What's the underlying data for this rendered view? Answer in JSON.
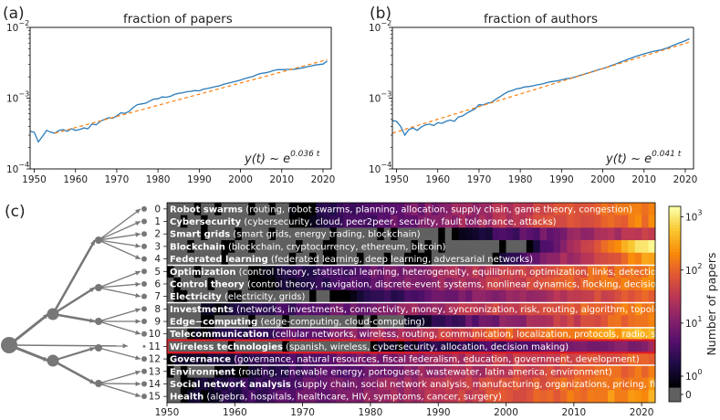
{
  "chart_data": [
    {
      "type": "line",
      "panel": "(a)",
      "title": "fraction of papers",
      "yscale": "log",
      "xlim": [
        1949,
        2022
      ],
      "ylim": [
        0.0001,
        0.01
      ],
      "x_ticks": [
        "1950",
        "1960",
        "1970",
        "1980",
        "1990",
        "2000",
        "2010",
        "2020"
      ],
      "y_ticks": [
        {
          "base": "10",
          "exp": "−4"
        },
        {
          "base": "10",
          "exp": "−3"
        },
        {
          "base": "10",
          "exp": "−2"
        }
      ],
      "fit_base": "y(t) ~ e",
      "fit_exp": "0.036 t",
      "series": [
        {
          "name": "data",
          "x": [
            1949,
            1950,
            1951,
            1952,
            1953,
            1954,
            1955,
            1956,
            1957,
            1958,
            1959,
            1960,
            1961,
            1962,
            1963,
            1964,
            1965,
            1966,
            1967,
            1968,
            1969,
            1970,
            1971,
            1972,
            1973,
            1974,
            1975,
            1976,
            1977,
            1978,
            1979,
            1980,
            1981,
            1982,
            1983,
            1984,
            1985,
            1986,
            1987,
            1988,
            1989,
            1990,
            1991,
            1992,
            1993,
            1994,
            1995,
            1996,
            1997,
            1998,
            1999,
            2000,
            2001,
            2002,
            2003,
            2004,
            2005,
            2006,
            2007,
            2008,
            2009,
            2010,
            2011,
            2012,
            2013,
            2014,
            2015,
            2016,
            2017,
            2018,
            2019,
            2020,
            2021
          ],
          "y": [
            0.00034,
            0.00033,
            0.00024,
            0.00029,
            0.00035,
            0.00033,
            0.00032,
            0.00035,
            0.00036,
            0.00034,
            0.00037,
            0.00035,
            0.00036,
            0.00038,
            0.00037,
            0.00043,
            0.00042,
            0.00047,
            0.0005,
            0.00053,
            0.00052,
            0.00056,
            0.00062,
            0.00061,
            0.00065,
            0.00074,
            0.00081,
            0.00083,
            0.00085,
            0.00091,
            0.00097,
            0.00098,
            0.00104,
            0.00103,
            0.00106,
            0.00113,
            0.00117,
            0.00119,
            0.00123,
            0.00125,
            0.00128,
            0.00127,
            0.00134,
            0.00137,
            0.00141,
            0.00146,
            0.0015,
            0.00158,
            0.00163,
            0.00168,
            0.00174,
            0.0018,
            0.00189,
            0.00196,
            0.00203,
            0.00215,
            0.00224,
            0.00228,
            0.00235,
            0.00246,
            0.00253,
            0.00253,
            0.00254,
            0.00256,
            0.00255,
            0.00262,
            0.00268,
            0.00276,
            0.00284,
            0.00293,
            0.00298,
            0.00303,
            0.00335
          ]
        },
        {
          "name": "fit",
          "x": [
            1955,
            2021
          ],
          "y": [
            0.00032,
            0.0035
          ]
        }
      ]
    },
    {
      "type": "line",
      "panel": "(b)",
      "title": "fraction of authors",
      "yscale": "log",
      "xlim": [
        1949,
        2022
      ],
      "ylim": [
        0.0001,
        0.01
      ],
      "x_ticks": [
        "1950",
        "1960",
        "1970",
        "1980",
        "1990",
        "2000",
        "2010",
        "2020"
      ],
      "y_ticks": [
        {
          "base": "10",
          "exp": "−4"
        },
        {
          "base": "10",
          "exp": "−3"
        },
        {
          "base": "10",
          "exp": "−2"
        }
      ],
      "fit_base": "y(t) ~ e",
      "fit_exp": "0.041 t",
      "series": [
        {
          "name": "data",
          "x": [
            1949,
            1950,
            1951,
            1952,
            1953,
            1954,
            1955,
            1956,
            1957,
            1958,
            1959,
            1960,
            1961,
            1962,
            1963,
            1964,
            1965,
            1966,
            1967,
            1968,
            1969,
            1970,
            1971,
            1972,
            1973,
            1974,
            1975,
            1976,
            1977,
            1978,
            1979,
            1980,
            1981,
            1982,
            1983,
            1984,
            1985,
            1986,
            1987,
            1988,
            1989,
            1990,
            1991,
            1992,
            1993,
            1994,
            1995,
            1996,
            1997,
            1998,
            1999,
            2000,
            2001,
            2002,
            2003,
            2004,
            2005,
            2006,
            2007,
            2008,
            2009,
            2010,
            2011,
            2012,
            2013,
            2014,
            2015,
            2016,
            2017,
            2018,
            2019,
            2020,
            2021
          ],
          "y": [
            0.00048,
            0.00047,
            0.0004,
            0.0003,
            0.00036,
            0.00038,
            0.00035,
            0.00039,
            0.00042,
            0.00043,
            0.00041,
            0.00045,
            0.00044,
            0.00047,
            0.00049,
            0.00047,
            0.00054,
            0.00056,
            0.00061,
            0.00066,
            0.0007,
            0.00081,
            0.0008,
            0.00085,
            0.00087,
            0.00096,
            0.00104,
            0.00114,
            0.00123,
            0.00128,
            0.00135,
            0.00138,
            0.00144,
            0.00146,
            0.00149,
            0.00154,
            0.00157,
            0.00163,
            0.00169,
            0.00172,
            0.00176,
            0.00181,
            0.00187,
            0.00191,
            0.00197,
            0.00205,
            0.00214,
            0.00223,
            0.00232,
            0.00242,
            0.00253,
            0.00262,
            0.00274,
            0.00288,
            0.00302,
            0.00318,
            0.00335,
            0.00352,
            0.0037,
            0.00389,
            0.00405,
            0.00422,
            0.00438,
            0.00455,
            0.00468,
            0.00479,
            0.00497,
            0.00524,
            0.00553,
            0.00585,
            0.00614,
            0.00649,
            0.0069
          ]
        },
        {
          "name": "fit",
          "x": [
            1949,
            2021
          ],
          "y": [
            0.00032,
            0.0062
          ]
        }
      ]
    },
    {
      "type": "heatmap",
      "panel": "(c)",
      "colorbar_label": "Number of papers",
      "colorbar_ticks": [
        "0",
        {
          "base": "10",
          "exp": "0"
        },
        {
          "base": "10",
          "exp": "1"
        },
        {
          "base": "10",
          "exp": "2"
        },
        {
          "base": "10",
          "exp": "3"
        }
      ],
      "x_ticks": [
        "1950",
        "1960",
        "1970",
        "1980",
        "1990",
        "2000",
        "2010",
        "2020"
      ],
      "xlim": [
        1950,
        2022
      ],
      "rows": [
        {
          "id": "0",
          "name": "Robot swarms",
          "keywords": " (routing, robot swarms, planning, allocation, supply chain, game theory, congestion)",
          "onset": 1968,
          "level": 2.4
        },
        {
          "id": "1",
          "name": "Cybersecurity",
          "keywords": " (cybersecurity, cloud, peer2peer, security, fault tolearance, attacks)",
          "onset": 1968,
          "level": 2.4
        },
        {
          "id": "2",
          "name": "Smart grids",
          "keywords": " (smart grids, energy trading, blockchain)",
          "onset": 1992,
          "level": 1.8
        },
        {
          "id": "3",
          "name": "Blockchain",
          "keywords": " (blockchain, cryptocurrency, ethereum, bitcoin)",
          "onset": 2003,
          "level": 3.2
        },
        {
          "id": "4",
          "name": "Federated learning",
          "keywords": " (federated learning, deep learning, adversarial networks)",
          "onset": 1998,
          "level": 2.6
        },
        {
          "id": "5",
          "name": "Optimization",
          "keywords": " (control theory, statistical learning, heterogeneity, equilibrium, optimization, links, detection, web, health)",
          "onset": 1962,
          "level": 2.4
        },
        {
          "id": "6",
          "name": "Control theory",
          "keywords": " (control theory, navigation, discrete-event systems, nonlinear dynamics, flocking, decision making, formation)",
          "onset": 1965,
          "level": 2.5
        },
        {
          "id": "7",
          "name": "Electricity",
          "keywords": " (electricity, grids)",
          "onset": 1974,
          "level": 2.1
        },
        {
          "id": "8",
          "name": "Investments",
          "keywords": " (networks, investments, connectivity, money, syncronization, risk, routing, algorithm, topology)",
          "onset": 1955,
          "level": 2.4
        },
        {
          "id": "9",
          "name": "Edge−computing",
          "keywords": " (edge-computing, cloud-computing)",
          "onset": 1985,
          "level": 2.4
        },
        {
          "id": "10",
          "name": "Telecommunication",
          "keywords": " (cellular networks, wireless, routing, communication, localization, protocols, radio, security)",
          "onset": 1954,
          "level": 2.8
        },
        {
          "id": "11",
          "name": "Wireless technologies",
          "keywords": " (spanish, wireless, cybersecurity, allocation, decision making)",
          "onset": 1980,
          "level": 1.3
        },
        {
          "id": "12",
          "name": "Governance",
          "keywords": " (governance, natural resources, fiscal federalism, education, government, development)",
          "onset": 1950,
          "level": 2.2
        },
        {
          "id": "13",
          "name": "Environment",
          "keywords": " (routing, renewable energy, portoguese, wastewater, latin america, environment)",
          "onset": 1957,
          "level": 2.3
        },
        {
          "id": "14",
          "name": "Social network analysis",
          "keywords": " (supply chain, social network analysis, manufacturing, organizations, pricing, firms)",
          "onset": 1952,
          "level": 2.5
        },
        {
          "id": "15",
          "name": "Health",
          "keywords": " (algebra, hospitals, healthcare, HIV, symptoms, cancer, surgery)",
          "onset": 1952,
          "level": 2.6
        }
      ]
    }
  ]
}
